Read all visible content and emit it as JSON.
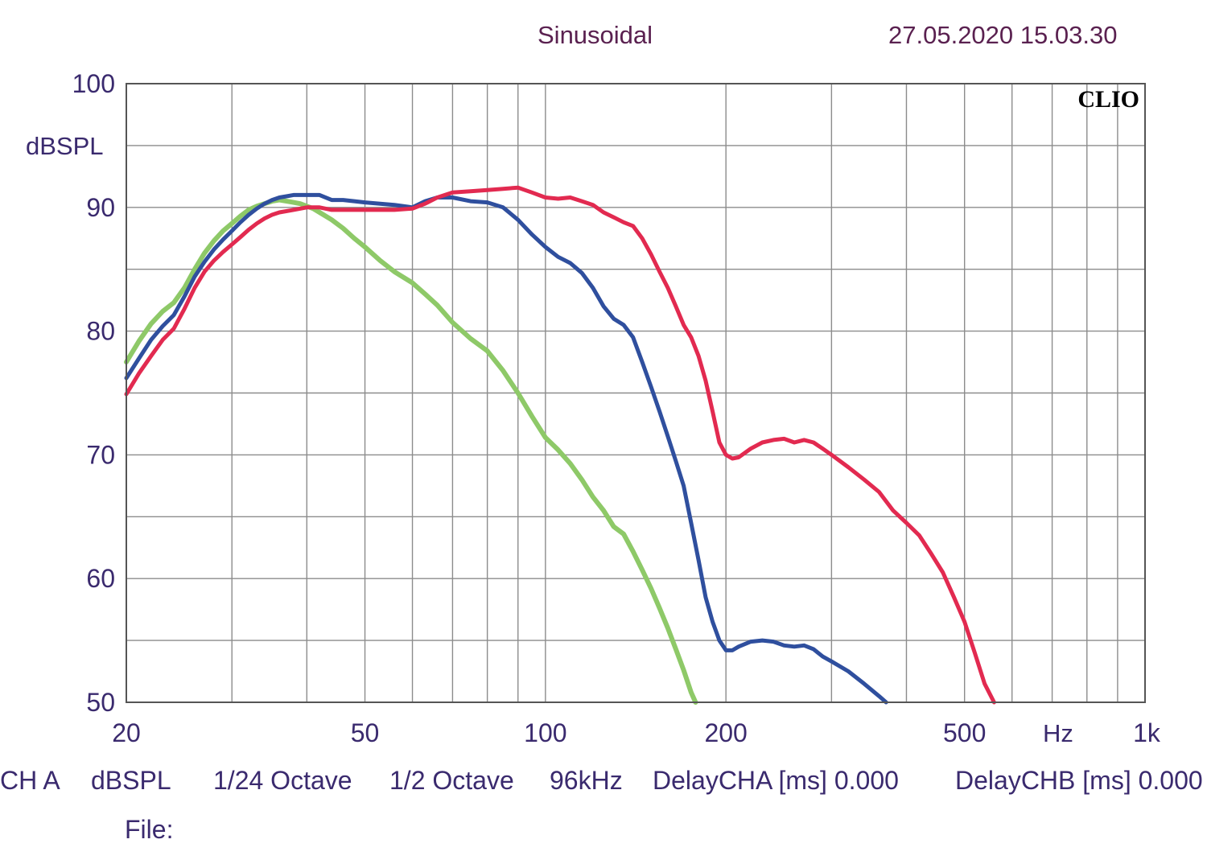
{
  "header": {
    "mode": "Sinusoidal",
    "timestamp": "27.05.2020 15.03.30"
  },
  "brand": "CLIO",
  "footer": {
    "channel": "CH A",
    "unit": "dBSPL",
    "resolution": "1/24 Octave",
    "smoothing": "1/2 Octave",
    "sample_rate": "96kHz",
    "delay_cha": "DelayCHA [ms] 0.000",
    "delay_chb": "DelayCHB [ms] 0.000",
    "file_label": "File:"
  },
  "chart_data": {
    "type": "line",
    "title": "",
    "xlabel": "Hz",
    "ylabel": "dBSPL",
    "x_scale": "log",
    "xlim": [
      20,
      1000
    ],
    "ylim": [
      50,
      100
    ],
    "grid": true,
    "colors": {
      "grid": "#8c8c8c",
      "frame": "#555555",
      "text": "#3a2a6e"
    },
    "y_ticks": [
      {
        "value": 100,
        "label": "100"
      },
      {
        "value": 90,
        "label": "90"
      },
      {
        "value": 80,
        "label": "80"
      },
      {
        "value": 70,
        "label": "70"
      },
      {
        "value": 60,
        "label": "60"
      },
      {
        "value": 50,
        "label": "50"
      }
    ],
    "x_ticks": [
      {
        "value": 20,
        "label": "20"
      },
      {
        "value": 50,
        "label": "50"
      },
      {
        "value": 100,
        "label": "100"
      },
      {
        "value": 200,
        "label": "200"
      },
      {
        "value": 500,
        "label": "500"
      },
      {
        "value": 1000,
        "label": "1k"
      }
    ],
    "series": [
      {
        "color": "#8ec968",
        "width": 6,
        "x": [
          20,
          21,
          22,
          23,
          24,
          25,
          26,
          27,
          28,
          29,
          30,
          31,
          32,
          33,
          34,
          35,
          36,
          37,
          38,
          39,
          40,
          41,
          42,
          44,
          46,
          48,
          50,
          53,
          56,
          60,
          63,
          66,
          70,
          75,
          80,
          85,
          90,
          95,
          100,
          105,
          110,
          115,
          120,
          125,
          130,
          135,
          140,
          145,
          150,
          155,
          160,
          165,
          170,
          175,
          178
        ],
        "y": [
          77.5,
          79.2,
          80.6,
          81.6,
          82.3,
          83.5,
          85,
          86.3,
          87.3,
          88.1,
          88.7,
          89.3,
          89.8,
          90.1,
          90.3,
          90.5,
          90.6,
          90.5,
          90.4,
          90.3,
          90.1,
          89.9,
          89.6,
          89.0,
          88.3,
          87.5,
          86.8,
          85.7,
          84.8,
          83.9,
          83.0,
          82.1,
          80.7,
          79.4,
          78.4,
          76.8,
          75.0,
          73.1,
          71.4,
          70.4,
          69.3,
          68.0,
          66.6,
          65.5,
          64.2,
          63.6,
          62.2,
          60.7,
          59.2,
          57.6,
          56.0,
          54.3,
          52.6,
          50.8,
          50
        ]
      },
      {
        "color": "#2f4f9e",
        "width": 5,
        "x": [
          20,
          21,
          22,
          23,
          24,
          25,
          26,
          27,
          28,
          29,
          30,
          31,
          32,
          33,
          34,
          35,
          36,
          37,
          38,
          39,
          40,
          42,
          44,
          46,
          48,
          50,
          53,
          56,
          60,
          63,
          66,
          70,
          75,
          80,
          85,
          90,
          95,
          100,
          105,
          110,
          115,
          120,
          125,
          130,
          135,
          140,
          145,
          150,
          155,
          160,
          165,
          170,
          175,
          180,
          185,
          190,
          195,
          200,
          205,
          210,
          220,
          230,
          240,
          250,
          260,
          270,
          280,
          290,
          300,
          320,
          340,
          360,
          370
        ],
        "y": [
          76.2,
          77.8,
          79.3,
          80.4,
          81.3,
          82.8,
          84.4,
          85.6,
          86.6,
          87.4,
          88.1,
          88.8,
          89.4,
          89.9,
          90.3,
          90.6,
          90.8,
          90.9,
          91.0,
          91.0,
          91.0,
          91.0,
          90.6,
          90.6,
          90.5,
          90.4,
          90.3,
          90.2,
          90.0,
          90.5,
          90.8,
          90.8,
          90.5,
          90.4,
          90.0,
          89.0,
          87.8,
          86.8,
          86.0,
          85.5,
          84.7,
          83.5,
          82.0,
          81.0,
          80.5,
          79.5,
          77.5,
          75.5,
          73.5,
          71.5,
          69.5,
          67.5,
          64.5,
          61.5,
          58.5,
          56.5,
          55.0,
          54.2,
          54.2,
          54.5,
          54.9,
          55.0,
          54.9,
          54.6,
          54.5,
          54.6,
          54.3,
          53.7,
          53.3,
          52.5,
          51.5,
          50.5,
          50
        ]
      },
      {
        "color": "#e22a50",
        "width": 5,
        "x": [
          20,
          21,
          22,
          23,
          24,
          25,
          26,
          27,
          28,
          29,
          30,
          31,
          32,
          33,
          34,
          35,
          36,
          38,
          40,
          42,
          44,
          46,
          48,
          50,
          53,
          56,
          60,
          63,
          66,
          70,
          75,
          80,
          85,
          90,
          95,
          100,
          105,
          110,
          115,
          120,
          125,
          130,
          135,
          140,
          145,
          150,
          155,
          160,
          165,
          170,
          175,
          180,
          185,
          190,
          195,
          200,
          205,
          210,
          220,
          230,
          240,
          250,
          260,
          270,
          280,
          290,
          300,
          320,
          340,
          360,
          380,
          400,
          420,
          440,
          460,
          480,
          500,
          520,
          540,
          560
        ],
        "y": [
          74.9,
          76.6,
          78.0,
          79.3,
          80.2,
          81.8,
          83.5,
          84.8,
          85.7,
          86.4,
          87.0,
          87.6,
          88.2,
          88.7,
          89.1,
          89.4,
          89.6,
          89.8,
          90.0,
          90.0,
          89.8,
          89.8,
          89.8,
          89.8,
          89.8,
          89.8,
          89.9,
          90.3,
          90.8,
          91.2,
          91.3,
          91.4,
          91.5,
          91.6,
          91.2,
          90.8,
          90.7,
          90.8,
          90.5,
          90.2,
          89.6,
          89.2,
          88.8,
          88.5,
          87.5,
          86.2,
          84.8,
          83.5,
          82.0,
          80.5,
          79.5,
          78.0,
          76.0,
          73.5,
          71.0,
          70.0,
          69.7,
          69.8,
          70.5,
          71.0,
          71.2,
          71.3,
          71.0,
          71.2,
          71.0,
          70.5,
          70.0,
          69.0,
          68.0,
          67.0,
          65.5,
          64.5,
          63.5,
          62.0,
          60.5,
          58.5,
          56.5,
          54.0,
          51.5,
          50
        ]
      }
    ]
  }
}
